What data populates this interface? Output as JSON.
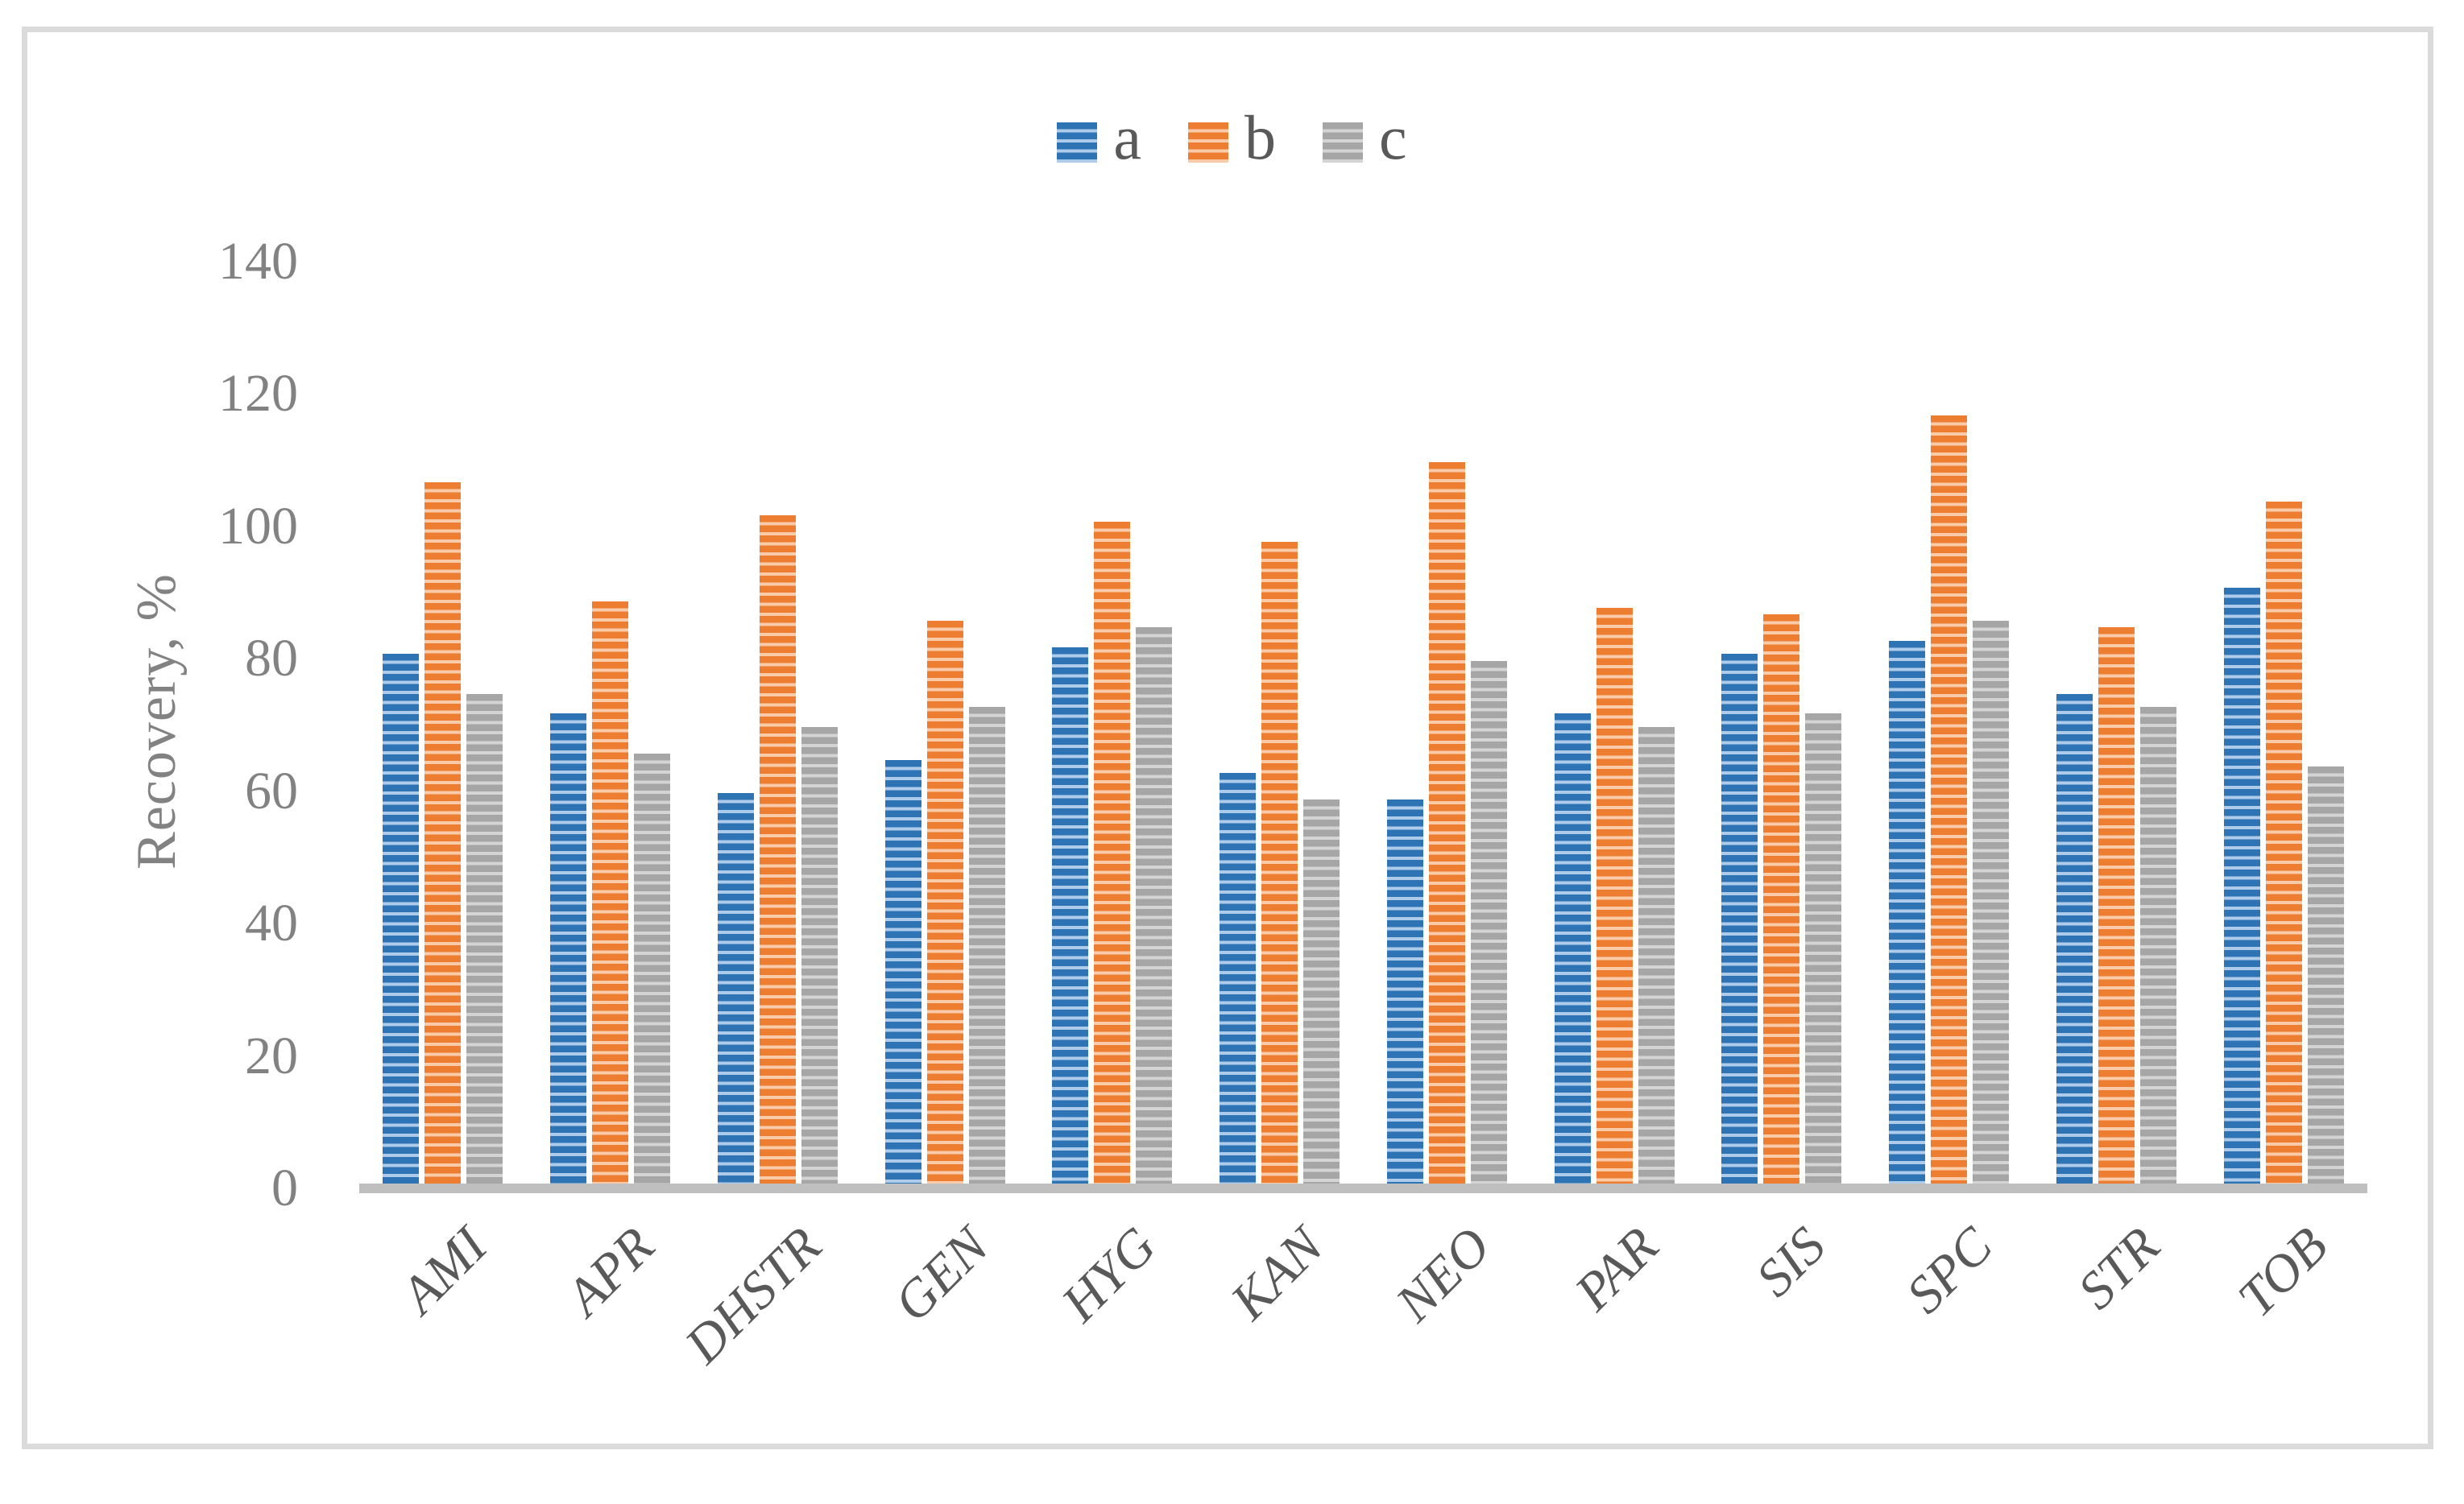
{
  "chart_data": {
    "type": "bar",
    "title": "",
    "ylabel": "Recovery, %",
    "xlabel": "",
    "ylim": [
      0,
      140
    ],
    "yticks": [
      0,
      20,
      40,
      60,
      80,
      100,
      120,
      140
    ],
    "grid": false,
    "legend_position": "top-center",
    "bar_fill_style": "horizontal-stripes",
    "categories": [
      "AMI",
      "APR",
      "DHSTR",
      "GEN",
      "HYG",
      "KAN",
      "NEO",
      "PAR",
      "SIS",
      "SPC",
      "STR",
      "TOB"
    ],
    "series": [
      {
        "name": "a",
        "color": "#2e74b5",
        "stripe_light_color": "#aecbea",
        "values": [
          80,
          71,
          59,
          64,
          81,
          62,
          58,
          71,
          80,
          82,
          74,
          90
        ]
      },
      {
        "name": "b",
        "color": "#ed7d31",
        "stripe_light_color": "#f9cba8",
        "values": [
          106,
          88,
          101,
          85,
          100,
          97,
          109,
          87,
          86,
          116,
          84,
          103
        ]
      },
      {
        "name": "c",
        "color": "#a6a6a6",
        "stripe_light_color": "#d4d4d4",
        "values": [
          74,
          65,
          69,
          72,
          84,
          58,
          79,
          69,
          71,
          85,
          72,
          63
        ]
      }
    ],
    "colors": {
      "axis_line": "#bfbfbf",
      "frame_border": "#dbdbdb",
      "tick_text": "#828282",
      "category_text": "#595959",
      "legend_text": "#595959"
    }
  }
}
